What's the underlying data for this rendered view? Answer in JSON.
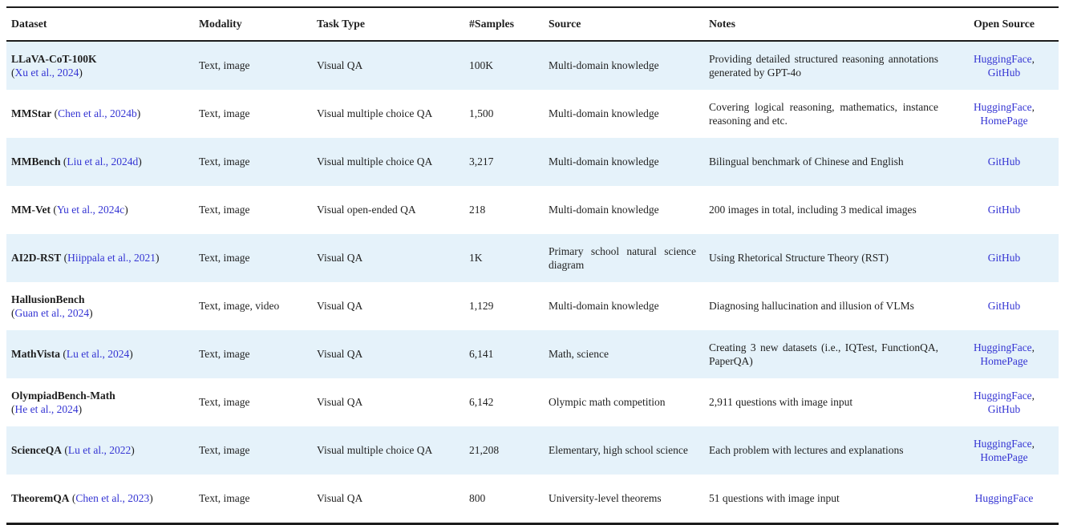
{
  "colors": {
    "link": "#3434d3",
    "stripe": "#e5f2fa",
    "rule": "#1c1c1c",
    "text": "#1f1f1f"
  },
  "punct": {
    "open": "(",
    "close": ")",
    "comma": ",",
    "space": " "
  },
  "table": {
    "columns": [
      {
        "key": "dataset",
        "label": "Dataset"
      },
      {
        "key": "modality",
        "label": "Modality"
      },
      {
        "key": "task_type",
        "label": "Task Type"
      },
      {
        "key": "samples",
        "label": "#Samples"
      },
      {
        "key": "source",
        "label": "Source"
      },
      {
        "key": "notes",
        "label": "Notes"
      },
      {
        "key": "open_source",
        "label": "Open Source"
      }
    ],
    "rows": [
      {
        "dataset": "LLaVA-CoT-100K",
        "citation": "Xu et al., 2024",
        "citation_own_line": true,
        "modality": "Text, image",
        "task_type": "Visual QA",
        "samples": "100K",
        "source": "Multi-domain knowledge",
        "notes": "Providing detailed structured reasoning annotations generated by GPT-4o",
        "open_source": [
          "HuggingFace",
          "GitHub"
        ]
      },
      {
        "dataset": "MMStar",
        "citation": "Chen et al., 2024b",
        "citation_own_line": false,
        "modality": "Text, image",
        "task_type": "Visual multiple choice QA",
        "samples": "1,500",
        "source": "Multi-domain knowledge",
        "notes": "Covering logical reasoning, mathematics, instance reasoning and etc.",
        "open_source": [
          "HuggingFace",
          "HomePage"
        ]
      },
      {
        "dataset": "MMBench",
        "citation": "Liu et al., 2024d",
        "citation_own_line": false,
        "modality": "Text, image",
        "task_type": "Visual multiple choice QA",
        "samples": "3,217",
        "source": "Multi-domain knowledge",
        "notes": "Bilingual benchmark of Chinese and English",
        "open_source": [
          "GitHub"
        ]
      },
      {
        "dataset": "MM-Vet",
        "citation": "Yu et al., 2024c",
        "citation_own_line": false,
        "modality": "Text, image",
        "task_type": "Visual open-ended QA",
        "samples": "218",
        "source": "Multi-domain knowledge",
        "notes": "200 images in total, including 3 medical images",
        "open_source": [
          "GitHub"
        ]
      },
      {
        "dataset": "AI2D-RST",
        "citation": "Hiippala et al., 2021",
        "citation_own_line": false,
        "modality": "Text, image",
        "task_type": "Visual QA",
        "samples": "1K",
        "source": "Primary school natural science diagram",
        "notes": "Using Rhetorical Structure Theory (RST)",
        "open_source": [
          "GitHub"
        ]
      },
      {
        "dataset": "HallusionBench",
        "citation": "Guan et al., 2024",
        "citation_own_line": true,
        "modality": "Text, image, video",
        "task_type": "Visual QA",
        "samples": "1,129",
        "source": "Multi-domain knowledge",
        "notes": "Diagnosing hallucination and illusion of VLMs",
        "open_source": [
          "GitHub"
        ]
      },
      {
        "dataset": "MathVista",
        "citation": "Lu et al., 2024",
        "citation_own_line": false,
        "modality": "Text, image",
        "task_type": "Visual QA",
        "samples": "6,141",
        "source": "Math, science",
        "notes": "Creating 3 new datasets (i.e., IQTest, FunctionQA, PaperQA)",
        "open_source": [
          "HuggingFace",
          "HomePage"
        ]
      },
      {
        "dataset": "OlympiadBench-Math",
        "citation": "He et al., 2024",
        "citation_own_line": true,
        "modality": "Text, image",
        "task_type": "Visual QA",
        "samples": "6,142",
        "source": "Olympic math competition",
        "notes": "2,911 questions with image input",
        "open_source": [
          "HuggingFace",
          "GitHub"
        ]
      },
      {
        "dataset": "ScienceQA",
        "citation": "Lu et al., 2022",
        "citation_own_line": false,
        "modality": "Text, image",
        "task_type": "Visual multiple choice QA",
        "samples": "21,208",
        "source": "Elementary, high school science",
        "notes": "Each problem with lectures and explanations",
        "open_source": [
          "HuggingFace",
          "HomePage"
        ]
      },
      {
        "dataset": "TheoremQA",
        "citation": "Chen et al., 2023",
        "citation_own_line": false,
        "modality": "Text, image",
        "task_type": "Visual QA",
        "samples": "800",
        "source": "University-level theorems",
        "notes": "51 questions with image input",
        "open_source": [
          "HuggingFace"
        ]
      }
    ]
  }
}
